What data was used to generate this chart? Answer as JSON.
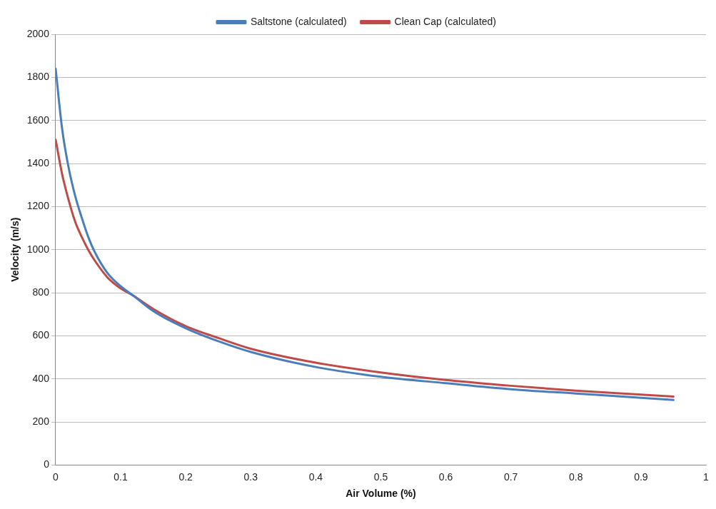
{
  "chart_data": {
    "type": "line",
    "xlabel": "Air Volume (%)",
    "ylabel": "Velocity (m/s)",
    "x": [
      0,
      0.01,
      0.02,
      0.03,
      0.04,
      0.05,
      0.06,
      0.08,
      0.1,
      0.12,
      0.15,
      0.2,
      0.25,
      0.3,
      0.4,
      0.5,
      0.6,
      0.7,
      0.8,
      0.9,
      0.95
    ],
    "series": [
      {
        "name": "Saltstone (calculated)",
        "color": "#4a7ebb",
        "values": [
          1840,
          1560,
          1380,
          1250,
          1150,
          1060,
          990,
          890,
          830,
          785,
          715,
          635,
          575,
          525,
          455,
          410,
          380,
          352,
          332,
          312,
          302
        ]
      },
      {
        "name": "Clean Cap (calculated)",
        "color": "#be4b48",
        "values": [
          1510,
          1350,
          1230,
          1130,
          1060,
          1000,
          950,
          870,
          820,
          785,
          725,
          645,
          590,
          540,
          475,
          430,
          395,
          368,
          345,
          327,
          318
        ]
      }
    ],
    "xlim": [
      0,
      1
    ],
    "xticks": [
      0,
      0.1,
      0.2,
      0.3,
      0.4,
      0.5,
      0.6,
      0.7,
      0.8,
      0.9,
      1
    ],
    "ylim": [
      0,
      2000
    ],
    "yticks": [
      0,
      200,
      400,
      600,
      800,
      1000,
      1200,
      1400,
      1600,
      1800,
      2000
    ],
    "grid": "y",
    "legend": "top",
    "marker": "none",
    "line_style": "solid"
  }
}
